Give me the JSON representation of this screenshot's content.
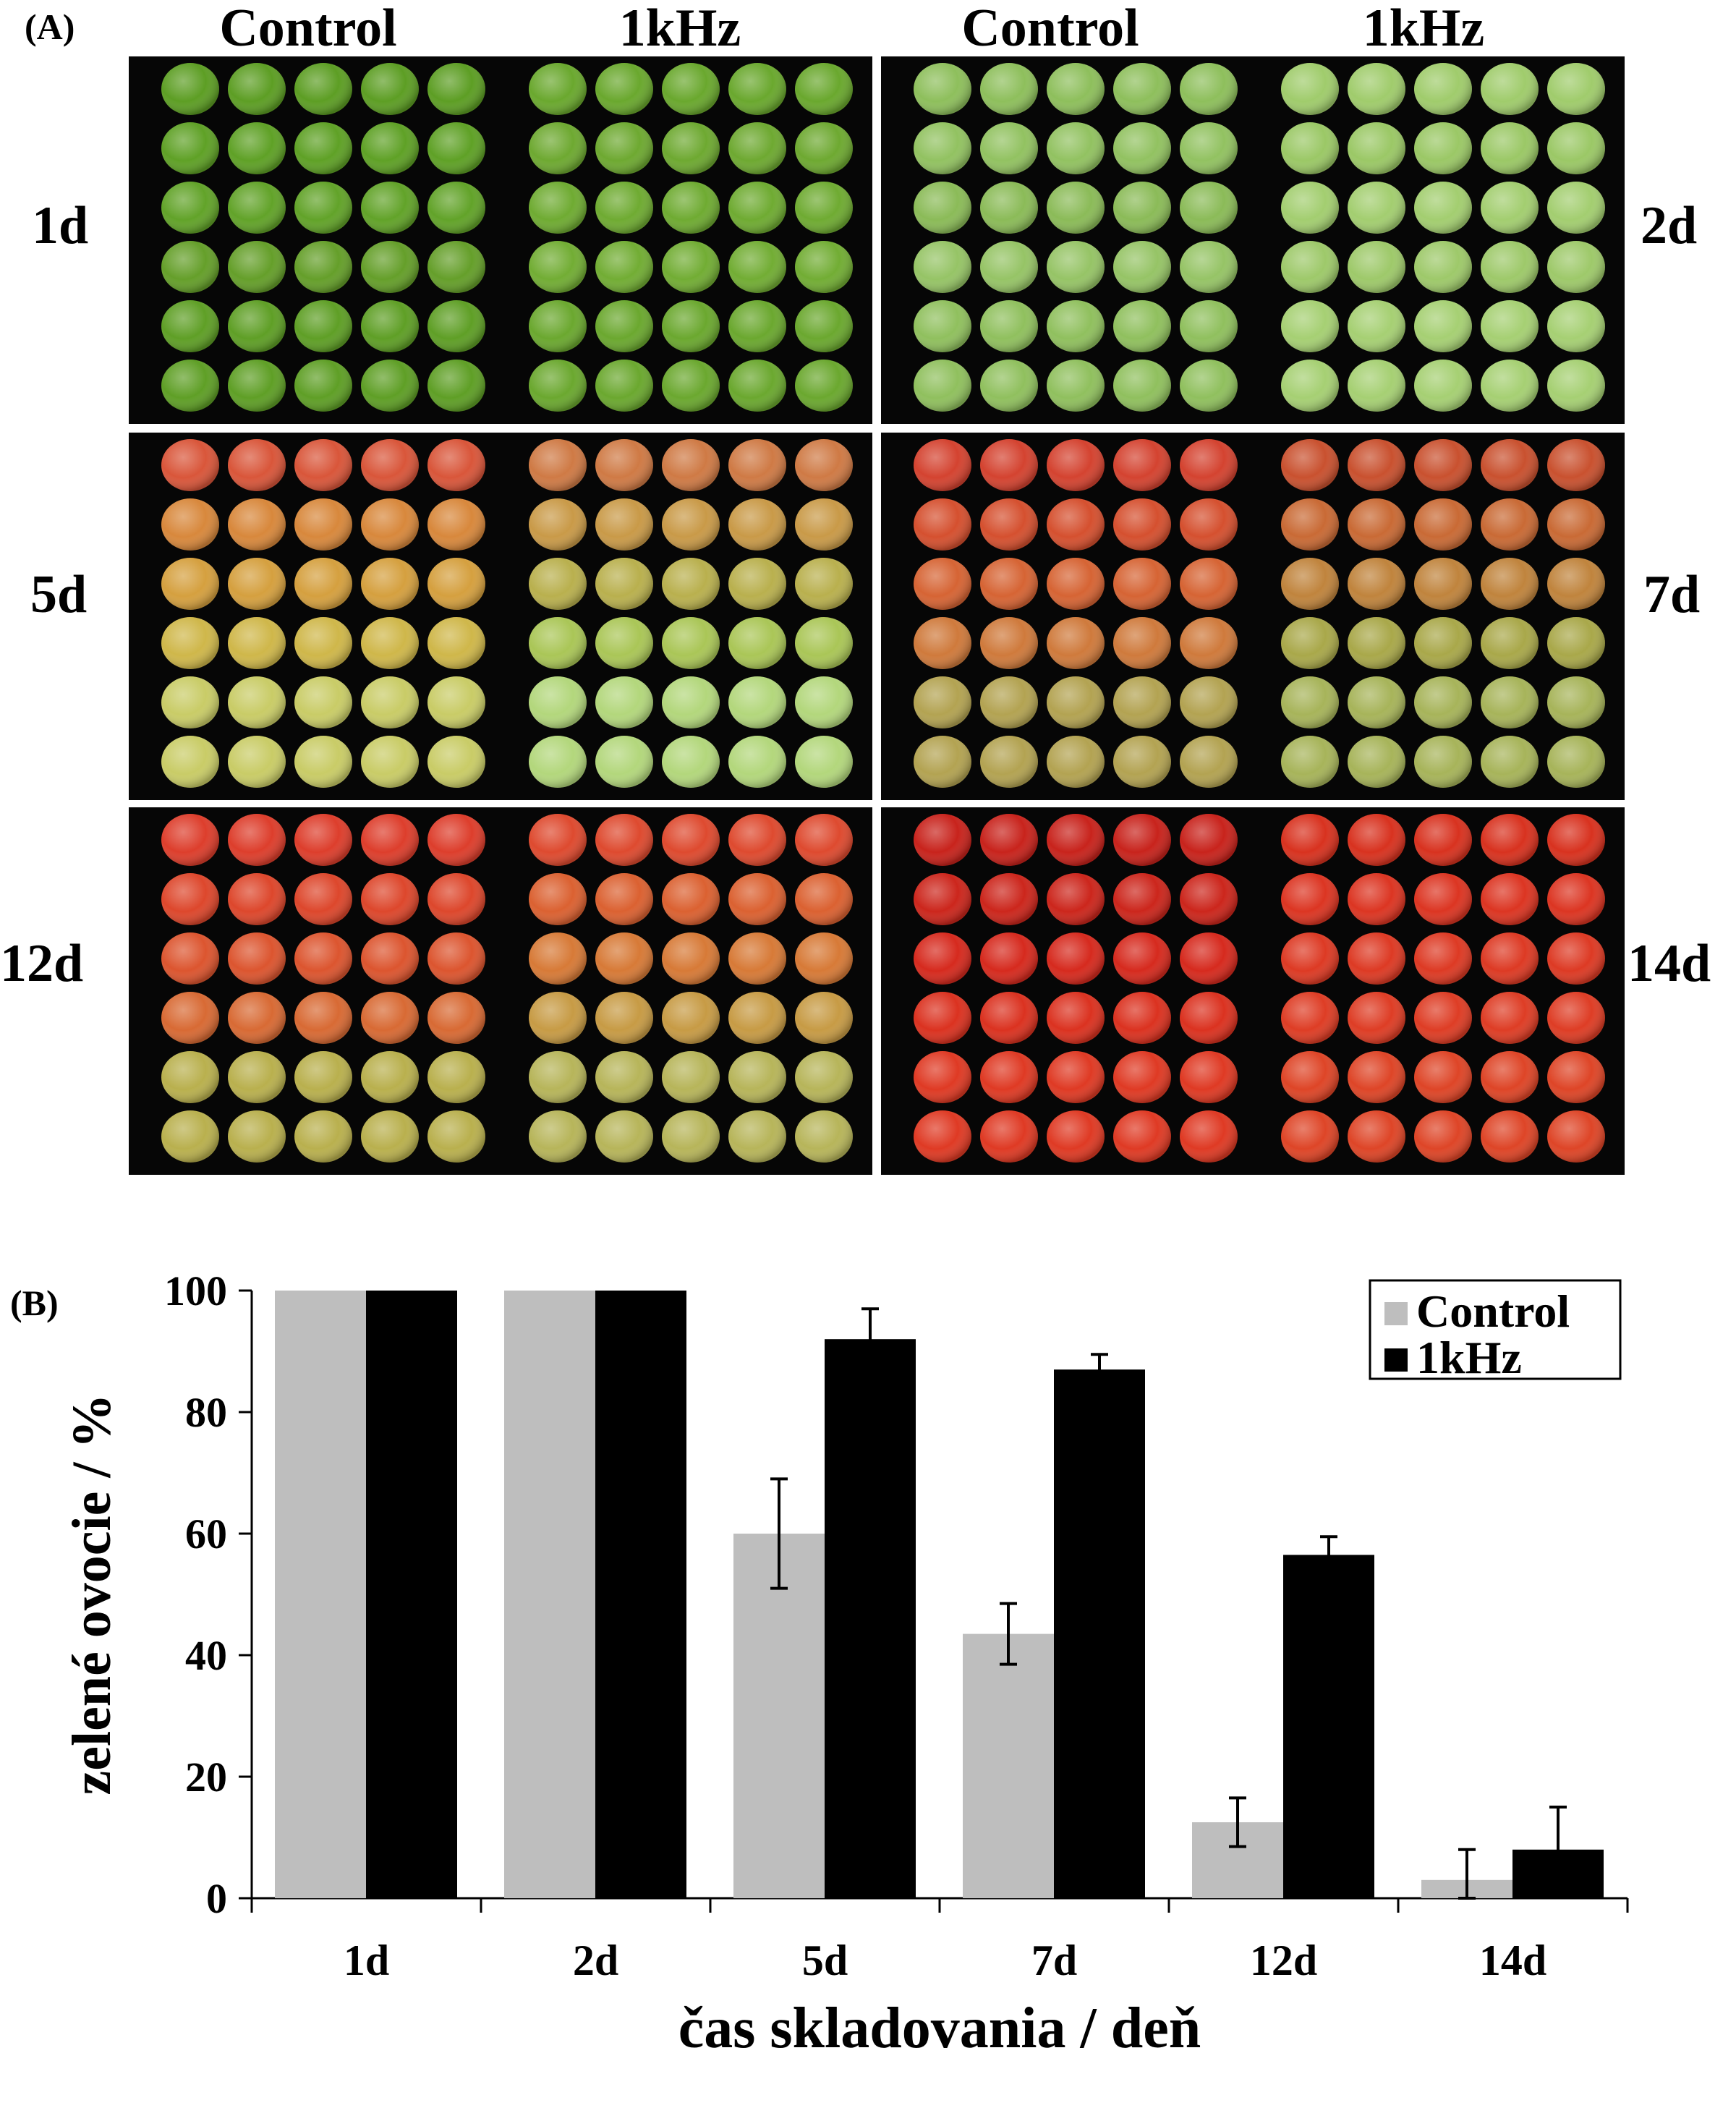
{
  "panel_a": {
    "label": "(A)",
    "column_headers": [
      "Control",
      "1kHz",
      "Control",
      "1kHz"
    ],
    "day_labels": [
      "1d",
      "2d",
      "5d",
      "7d",
      "12d",
      "14d"
    ],
    "photos": [
      {
        "day": "1d",
        "control": [
          "#5d9e24",
          "#5fa126",
          "#62a329",
          "#659f2a",
          "#5f9f26"
        ],
        "khz": [
          "#6aa82e",
          "#6ea931",
          "#6fab32",
          "#72ad34",
          "#6ba82f"
        ]
      },
      {
        "day": "2d",
        "control": [
          "#8ebf5c",
          "#92c261",
          "#8bbb58",
          "#96c466",
          "#90c05e"
        ],
        "khz": [
          "#a0cc6c",
          "#9bc866",
          "#a3ce70",
          "#9ec96a",
          "#a6d073"
        ]
      },
      {
        "day": "5d",
        "control": [
          "#d9563a",
          "#d8883c",
          "#d5a03f",
          "#cfb74a",
          "#c9cc67"
        ],
        "khz": [
          "#cf7a45",
          "#c99a48",
          "#b9b04e",
          "#aac657",
          "#b3d77c"
        ]
      },
      {
        "day": "7d",
        "control": [
          "#d44330",
          "#d5502f",
          "#d66434",
          "#cf7a3c",
          "#b3a352"
        ],
        "khz": [
          "#c9512f",
          "#c96a35",
          "#c0843d",
          "#a9a84a",
          "#a7b45a"
        ]
      },
      {
        "day": "12d",
        "control": [
          "#dd3e2c",
          "#dd472c",
          "#dc552f",
          "#d86a34",
          "#b9b04e"
        ],
        "khz": [
          "#de4a2f",
          "#db6131",
          "#d77a37",
          "#c79b45",
          "#b7b55a"
        ]
      },
      {
        "day": "14d",
        "control": [
          "#c8231c",
          "#cc261c",
          "#d62a1e",
          "#db3220",
          "#df3a24"
        ],
        "khz": [
          "#d8321f",
          "#dc3522",
          "#dd3a24",
          "#de3d25",
          "#de4527"
        ]
      }
    ]
  },
  "panel_b": {
    "label": "(B)"
  },
  "chart_data": {
    "type": "bar",
    "categories": [
      "1d",
      "2d",
      "5d",
      "7d",
      "12d",
      "14d"
    ],
    "series": [
      {
        "name": "Control",
        "values": [
          100,
          100,
          60,
          43.5,
          12.5,
          3
        ],
        "errors": [
          0,
          0,
          9,
          5,
          4,
          5
        ],
        "color": "#bebebe"
      },
      {
        "name": "1kHz",
        "values": [
          100,
          100,
          92,
          87,
          56.5,
          8
        ],
        "errors": [
          0,
          0,
          5,
          2.5,
          3,
          7
        ],
        "color": "#000000"
      }
    ],
    "xlabel": "čas skladovania / deň",
    "ylabel": "zelené ovocie / %",
    "ylim": [
      0,
      100
    ],
    "yticks": [
      0,
      20,
      40,
      60,
      80,
      100
    ],
    "grid": false,
    "legend_position": "top-right"
  }
}
